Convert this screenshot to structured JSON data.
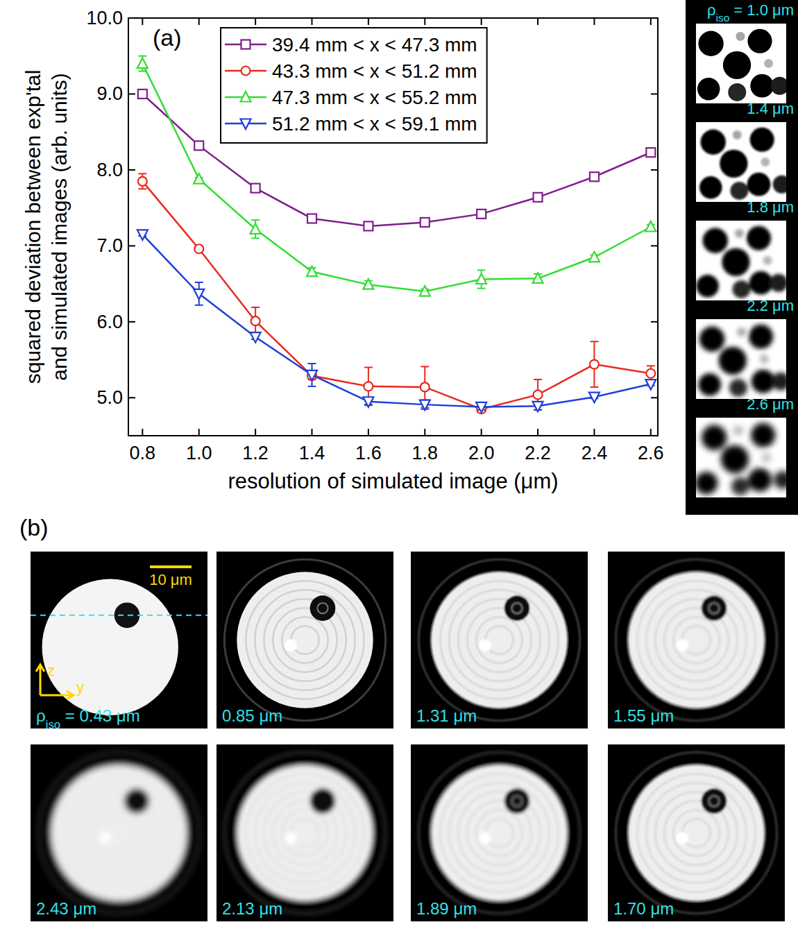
{
  "chart_data": {
    "type": "line",
    "annotations": [
      "(a)"
    ],
    "x_label": "resolution of simulated image (μm)",
    "y_label": [
      "squared deviation between exp'tal",
      "and simulated images (arb. units)"
    ],
    "x": [
      0.8,
      1.0,
      1.2,
      1.4,
      1.6,
      1.8,
      2.0,
      2.2,
      2.4,
      2.6
    ],
    "xlim": [
      0.75,
      2.625
    ],
    "xticks": [
      0.8,
      {
        "value": 1,
        "label": "1.0"
      },
      1.2,
      1.4,
      1.6,
      1.8,
      {
        "value": 2,
        "label": "2.0"
      },
      2.2,
      2.4,
      2.6
    ],
    "ylim": [
      4.5,
      10.0
    ],
    "yticks": [
      {
        "value": 5,
        "label": "5.0"
      },
      {
        "value": 6,
        "label": "6.0"
      },
      {
        "value": 7,
        "label": "7.0"
      },
      {
        "value": 8,
        "label": "8.0"
      },
      {
        "value": 9,
        "label": "9.0"
      },
      {
        "value": 10,
        "label": "10.0"
      }
    ],
    "legend": "top-right",
    "grid": false,
    "series": [
      {
        "name": "39.4 mm < x < 47.3 mm",
        "color": "#7f1e8c",
        "marker": "square",
        "line_style": "solid",
        "values": [
          9.0,
          8.32,
          7.76,
          7.36,
          7.26,
          7.31,
          7.42,
          7.64,
          7.91,
          8.23
        ],
        "errors": [
          0.03,
          0.03,
          0.03,
          0.03,
          0.03,
          0.03,
          0.03,
          0.03,
          0.03,
          0.05
        ]
      },
      {
        "name": "43.3 mm < x < 51.2 mm",
        "color": "#e8291c",
        "marker": "circle",
        "line_style": "solid",
        "values": [
          7.85,
          6.96,
          6.01,
          5.29,
          5.15,
          5.14,
          4.85,
          5.04,
          5.44,
          5.32
        ],
        "errors": [
          0.1,
          0.02,
          0.18,
          0.05,
          0.25,
          0.27,
          0.04,
          0.2,
          0.3,
          0.1
        ]
      },
      {
        "name": "47.3 mm < x < 55.2 mm",
        "color": "#33dd33",
        "marker": "triangle-up",
        "line_style": "solid",
        "values": [
          9.4,
          7.88,
          7.22,
          6.66,
          6.49,
          6.4,
          6.56,
          6.57,
          6.85,
          7.25
        ],
        "errors": [
          0.1,
          0.02,
          0.12,
          0.05,
          0.05,
          0.03,
          0.12,
          0.06,
          0.03,
          0.03
        ]
      },
      {
        "name": "51.2 mm < x < 59.1 mm",
        "color": "#1f3fd8",
        "marker": "triangle-down",
        "line_style": "solid",
        "values": [
          7.15,
          6.37,
          5.8,
          5.3,
          4.95,
          4.91,
          4.88,
          4.89,
          5.01,
          5.18
        ],
        "errors": [
          0.02,
          0.15,
          0.03,
          0.15,
          0.04,
          0.06,
          0.04,
          0.05,
          0.02,
          0.02
        ]
      }
    ]
  },
  "side_panel": {
    "labels": [
      "ρiso = 1.0 μm",
      "1.4 μm",
      "1.8 μm",
      "2.2 μm",
      "2.6 μm"
    ]
  },
  "panel_b": {
    "letter": "(b)",
    "scale_bar": "10 μm",
    "axes": [
      "z",
      "y"
    ],
    "labels": [
      "ρiso = 0.43 μm",
      "0.85 μm",
      "1.31 μm",
      "1.55 μm",
      "2.43 μm",
      "2.13 μm",
      "1.89 μm",
      "1.70 μm"
    ]
  }
}
